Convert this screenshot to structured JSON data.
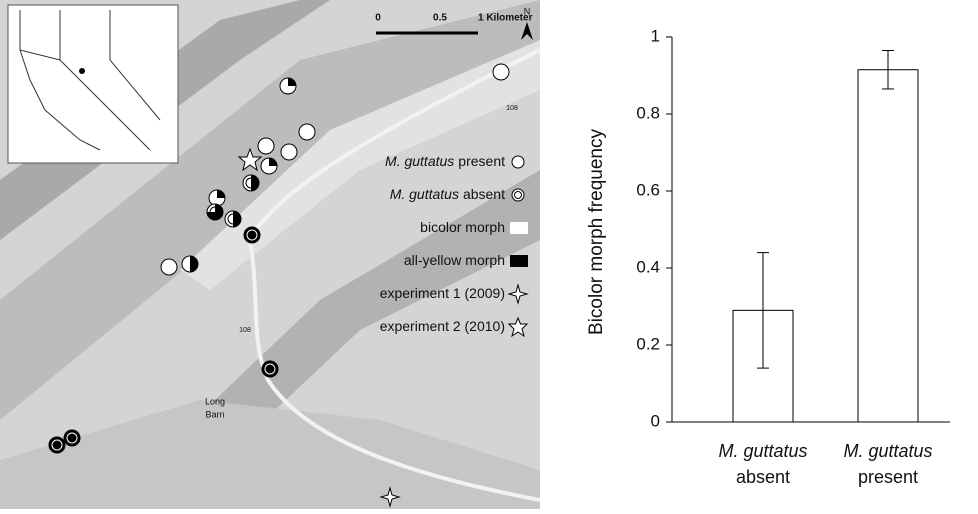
{
  "map": {
    "scale": [
      "0",
      "0.5",
      "1 Kilometer"
    ],
    "north": "N",
    "place": [
      "Long",
      "Barn"
    ],
    "roads": [
      "108",
      "108"
    ],
    "legend": [
      [
        "M. guttatus",
        "present"
      ],
      [
        "M. guttatus",
        "absent"
      ],
      [
        "bicolor morph"
      ],
      [
        "all-yellow morph"
      ],
      [
        "experiment 1 (2009)"
      ],
      [
        "experiment 2 (2010)"
      ]
    ]
  },
  "chart_data": {
    "type": "bar",
    "ylabel": "Bicolor morph frequency",
    "categories": [
      [
        "M. guttatus",
        "absent"
      ],
      [
        "M. guttatus",
        "present"
      ]
    ],
    "values": [
      0.29,
      0.915
    ],
    "errors": [
      0.15,
      0.05
    ],
    "color": "#ffffff",
    "ylim": [
      0,
      1
    ],
    "yticks": [
      0,
      0.2,
      0.4,
      0.6,
      0.8,
      1
    ]
  }
}
